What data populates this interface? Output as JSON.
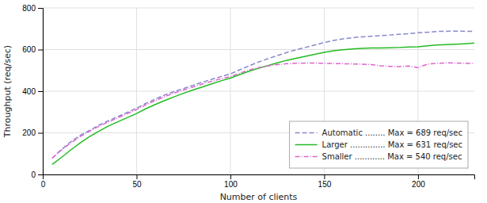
{
  "chart_data": {
    "type": "line",
    "xlabel": "Number of clients",
    "ylabel": "Throughput (req/sec)",
    "x": [
      5,
      10,
      15,
      20,
      25,
      30,
      35,
      40,
      45,
      50,
      55,
      60,
      65,
      70,
      75,
      80,
      85,
      90,
      95,
      100,
      105,
      110,
      115,
      120,
      125,
      130,
      135,
      140,
      145,
      150,
      155,
      160,
      165,
      170,
      175,
      180,
      185,
      190,
      195,
      200,
      205,
      210,
      215,
      220,
      225,
      230
    ],
    "series": [
      {
        "name": "Automatic ........ Max = 689 req/sec",
        "color": "#8888CC",
        "line_style": "dashed",
        "values": [
          78,
          120,
          158,
          188,
          212,
          237,
          258,
          278,
          298,
          318,
          342,
          362,
          382,
          398,
          413,
          428,
          443,
          457,
          470,
          483,
          503,
          522,
          540,
          556,
          571,
          586,
          599,
          610,
          622,
          634,
          644,
          651,
          657,
          661,
          664,
          667,
          670,
          673,
          676,
          681,
          683,
          687,
          688,
          689,
          688,
          687
        ]
      },
      {
        "name": "Larger .............. Max = 631 req/sec",
        "color": "#22BB22",
        "line_style": "solid",
        "values": [
          48,
          82,
          118,
          152,
          182,
          208,
          233,
          253,
          273,
          293,
          316,
          336,
          355,
          373,
          390,
          406,
          420,
          435,
          450,
          463,
          480,
          496,
          510,
          523,
          536,
          548,
          558,
          568,
          577,
          587,
          594,
          599,
          603,
          606,
          608,
          608,
          609,
          610,
          612,
          613,
          618,
          622,
          624,
          626,
          628,
          631
        ]
      },
      {
        "name": "Smaller ............ Max = 540 req/sec",
        "color": "#DD66CC",
        "line_style": "dashdot",
        "values": [
          78,
          118,
          152,
          182,
          208,
          232,
          252,
          272,
          292,
          312,
          335,
          355,
          374,
          391,
          406,
          420,
          434,
          448,
          460,
          470,
          487,
          502,
          513,
          522,
          528,
          532,
          534,
          535,
          535,
          534,
          533,
          532,
          531,
          530,
          528,
          522,
          519,
          518,
          521,
          513,
          530,
          534,
          536,
          535,
          534,
          533
        ]
      }
    ],
    "xlim": [
      0,
      230
    ],
    "ylim": [
      0,
      800
    ],
    "xticks": [
      0,
      50,
      100,
      150,
      200
    ],
    "yticks": [
      0,
      200,
      400,
      600,
      800
    ],
    "grid": true,
    "legend": "lower right"
  }
}
